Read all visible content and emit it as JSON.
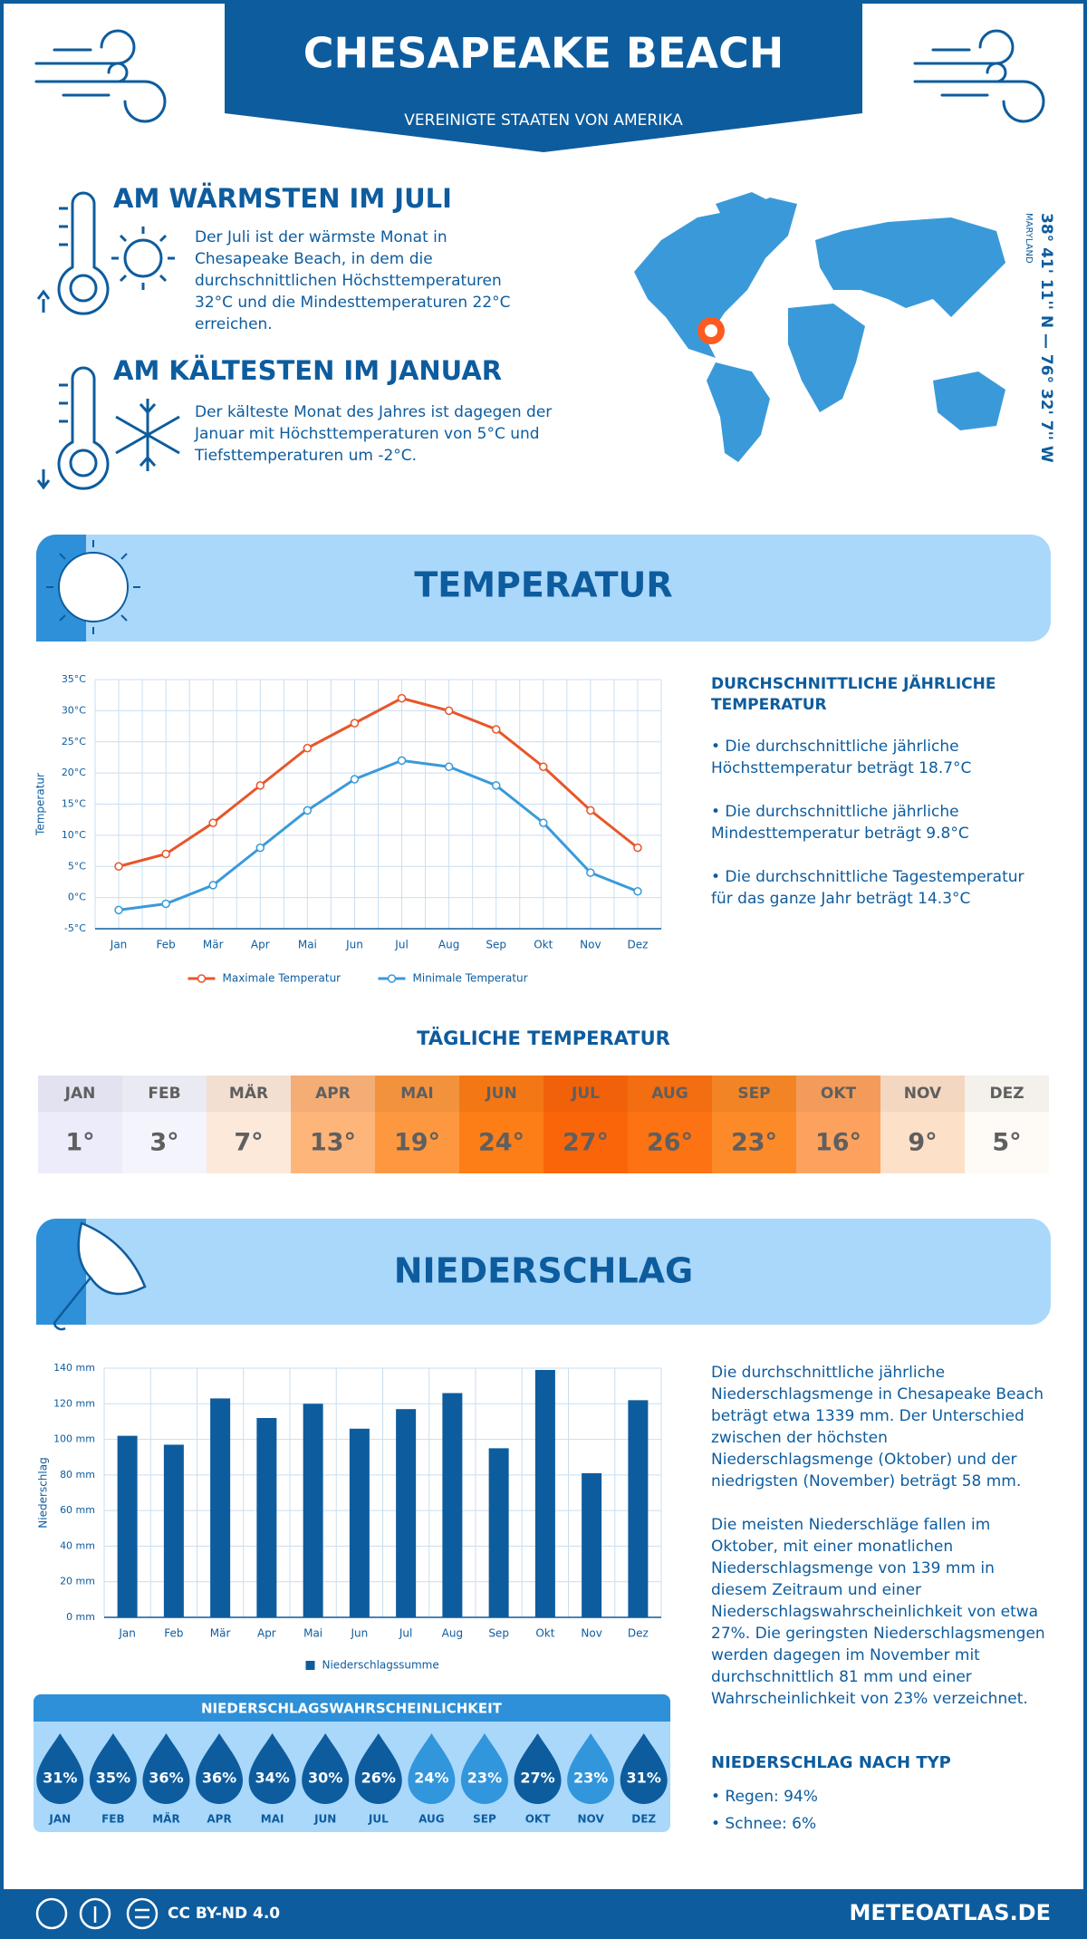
{
  "header": {
    "title": "CHESAPEAKE BEACH",
    "subtitle": "VEREINIGTE STAATEN VON AMERIKA"
  },
  "warmest": {
    "title": "AM WÄRMSTEN IM JULI",
    "text": "Der Juli ist der wärmste Monat in Chesapeake Beach, in dem die durchschnittlichen Höchsttemperaturen 32°C und die Mindesttemperaturen 22°C erreichen."
  },
  "coldest": {
    "title": "AM KÄLTESTEN IM JANUAR",
    "text": "Der kälteste Monat des Jahres ist dagegen der Januar mit Höchsttemperaturen von 5°C und Tiefsttemperaturen um -2°C."
  },
  "location": {
    "coordinates": "38° 41' 11'' N — 76° 32' 7'' W",
    "region": "MARYLAND"
  },
  "temperature": {
    "title": "TEMPERATUR",
    "annual": {
      "title": "DURCHSCHNITTLICHE JÄHRLICHE TEMPERATUR",
      "items": [
        "• Die durchschnittliche jährliche Höchsttemperatur beträgt 18.7°C",
        "• Die durchschnittliche jährliche Mindesttemperatur beträgt 9.8°C",
        "• Die durchschnittliche Tagestemperatur für das ganze Jahr beträgt 14.3°C"
      ]
    }
  },
  "daily": {
    "title": "TÄGLICHE TEMPERATUR",
    "months": [
      "JAN",
      "FEB",
      "MÄR",
      "APR",
      "MAI",
      "JUN",
      "JUL",
      "AUG",
      "SEP",
      "OKT",
      "NOV",
      "DEZ"
    ],
    "values": [
      "1°",
      "3°",
      "7°",
      "13°",
      "19°",
      "24°",
      "27°",
      "26°",
      "23°",
      "16°",
      "9°",
      "5°"
    ],
    "colors": [
      "#ececfb",
      "#f4f4fc",
      "#fde9da",
      "#fdb57a",
      "#fd9840",
      "#fd7d16",
      "#fb650a",
      "#fd7212",
      "#fd8a28",
      "#fda25e",
      "#fde0c8",
      "#fefaf6"
    ]
  },
  "precipitation": {
    "title": "NIEDERSCHLAG",
    "paragraphs": [
      "Die durchschnittliche jährliche Niederschlagsmenge in Chesapeake Beach beträgt etwa 1339 mm. Der Unterschied zwischen der höchsten Niederschlagsmenge (Oktober) und der niedrigsten (November) beträgt 58 mm.",
      "Die meisten Niederschläge fallen im Oktober, mit einer monatlichen Niederschlagsmenge von 139 mm in diesem Zeitraum und einer Niederschlagswahrscheinlichkeit von etwa 27%. Die geringsten Niederschlagsmengen werden dagegen im November mit durchschnittlich 81 mm und einer Wahrscheinlichkeit von 23% verzeichnet."
    ],
    "type_title": "NIEDERSCHLAG NACH TYP",
    "types": [
      "• Regen: 94%",
      "• Schnee: 6%"
    ]
  },
  "probability": {
    "title": "NIEDERSCHLAGSWAHRSCHEINLICHKEIT",
    "months": [
      "JAN",
      "FEB",
      "MÄR",
      "APR",
      "MAI",
      "JUN",
      "JUL",
      "AUG",
      "SEP",
      "OKT",
      "NOV",
      "DEZ"
    ],
    "values": [
      "31%",
      "35%",
      "36%",
      "36%",
      "34%",
      "30%",
      "26%",
      "24%",
      "23%",
      "27%",
      "23%",
      "31%"
    ],
    "colors": [
      "#0d5c9e",
      "#0d5c9e",
      "#0d5c9e",
      "#0d5c9e",
      "#0d5c9e",
      "#0d5c9e",
      "#0d5c9e",
      "#3196dc",
      "#3196dc",
      "#0d5c9e",
      "#3196dc",
      "#0d5c9e"
    ]
  },
  "footer": {
    "license": "CC BY-ND 4.0",
    "site": "METEOATLAS.DE"
  },
  "chart_data": [
    {
      "type": "line",
      "y_label": "Temperatur",
      "categories": [
        "Jan",
        "Feb",
        "Mär",
        "Apr",
        "Mai",
        "Jun",
        "Jul",
        "Aug",
        "Sep",
        "Okt",
        "Nov",
        "Dez"
      ],
      "series": [
        {
          "name": "Maximale Temperatur",
          "color": "#e8562a",
          "values": [
            5,
            7,
            12,
            18,
            24,
            28,
            32,
            30,
            27,
            21,
            14,
            8
          ]
        },
        {
          "name": "Minimale Temperatur",
          "color": "#3a9ad9",
          "values": [
            -2,
            -1,
            2,
            8,
            14,
            19,
            22,
            21,
            18,
            12,
            4,
            1
          ]
        }
      ],
      "ylim": [
        -5,
        35
      ],
      "yticks": [
        {
          "value": -5,
          "label": "-5°C"
        },
        {
          "value": 0,
          "label": "0°C"
        },
        {
          "value": 5,
          "label": "5°C"
        },
        {
          "value": 10,
          "label": "10°C"
        },
        {
          "value": 15,
          "label": "15°C"
        },
        {
          "value": 20,
          "label": "20°C"
        },
        {
          "value": 25,
          "label": "25°C"
        },
        {
          "value": 30,
          "label": "30°C"
        },
        {
          "value": 35,
          "label": "35°C"
        }
      ],
      "grid": true,
      "legend": "bottom"
    },
    {
      "type": "bar",
      "y_label": "Niederschlag",
      "categories": [
        "Jan",
        "Feb",
        "Mär",
        "Apr",
        "Mai",
        "Jun",
        "Jul",
        "Aug",
        "Sep",
        "Okt",
        "Nov",
        "Dez"
      ],
      "series": [
        {
          "name": "Niederschlagssumme",
          "color": "#0d5c9e",
          "values": [
            102,
            97,
            123,
            112,
            120,
            106,
            117,
            126,
            95,
            139,
            81,
            122
          ]
        }
      ],
      "ylim": [
        0,
        140
      ],
      "yticks": [
        {
          "value": 0,
          "label": "0 mm"
        },
        {
          "value": 20,
          "label": "20 mm"
        },
        {
          "value": 40,
          "label": "40 mm"
        },
        {
          "value": 60,
          "label": "60 mm"
        },
        {
          "value": 80,
          "label": "80 mm"
        },
        {
          "value": 100,
          "label": "100 mm"
        },
        {
          "value": 120,
          "label": "120 mm"
        },
        {
          "value": 140,
          "label": "140 mm"
        }
      ],
      "grid": true,
      "legend": "bottom"
    }
  ]
}
